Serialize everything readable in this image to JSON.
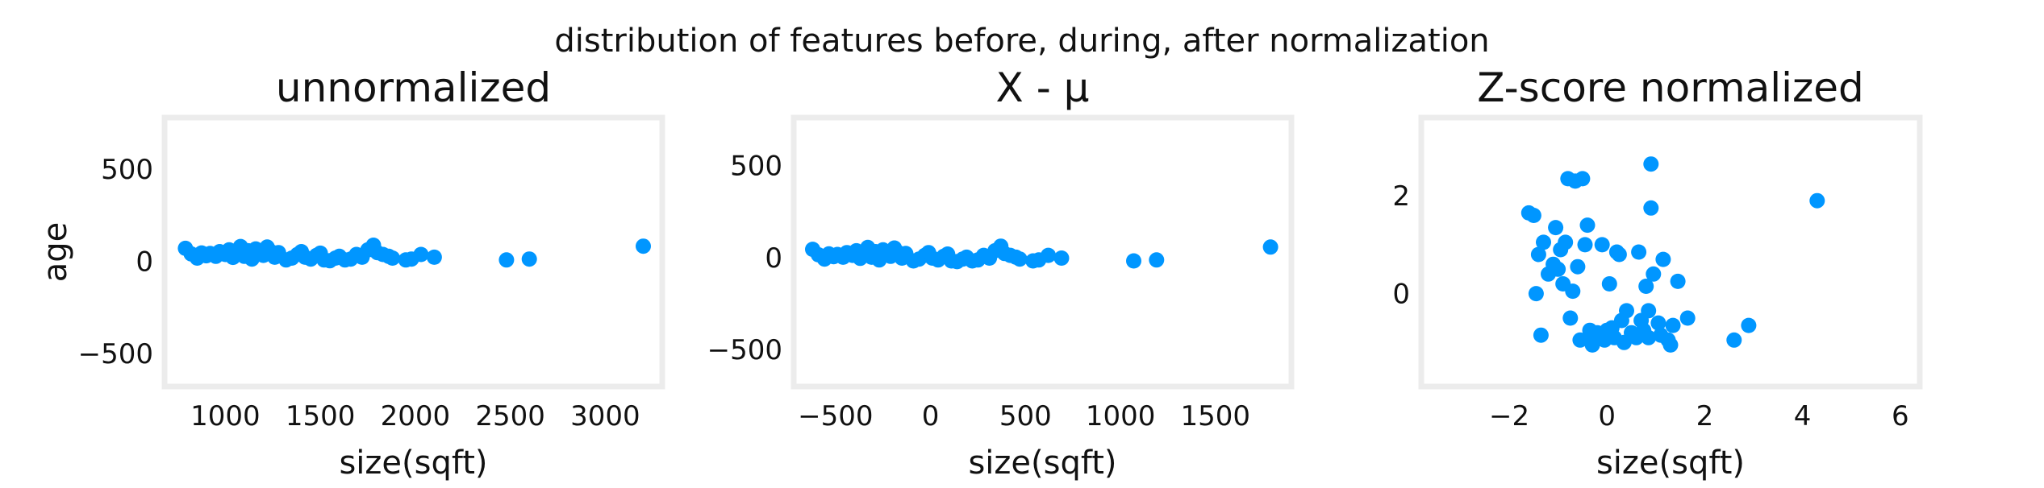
{
  "figure": {
    "suptitle": "distribution of features before, during, after normalization"
  },
  "colors": {
    "points": "#0096ff",
    "frame": "#ececec",
    "text": "#111111"
  },
  "chart_data": [
    {
      "type": "scatter",
      "title": "unnormalized",
      "xlabel": "size(sqft)",
      "ylabel": "age",
      "xlim": [
        680,
        3300
      ],
      "ylim": [
        -680,
        780
      ],
      "xticks": [
        1000,
        1500,
        2000,
        2500,
        3000
      ],
      "xtick_labels": [
        "1000",
        "1500",
        "2000",
        "2500",
        "3000"
      ],
      "yticks": [
        -500,
        0,
        500
      ],
      "ytick_labels": [
        "−500",
        "0",
        "500"
      ],
      "grid": false,
      "points": [
        [
          790,
          70
        ],
        [
          820,
          40
        ],
        [
          852,
          17
        ],
        [
          875,
          45
        ],
        [
          900,
          30
        ],
        [
          920,
          42
        ],
        [
          950,
          27
        ],
        [
          970,
          52
        ],
        [
          1000,
          37
        ],
        [
          1020,
          62
        ],
        [
          1040,
          21
        ],
        [
          1060,
          47
        ],
        [
          1080,
          80
        ],
        [
          1100,
          27
        ],
        [
          1120,
          57
        ],
        [
          1140,
          12
        ],
        [
          1160,
          67
        ],
        [
          1180,
          42
        ],
        [
          1200,
          32
        ],
        [
          1220,
          77
        ],
        [
          1240,
          52
        ],
        [
          1260,
          22
        ],
        [
          1280,
          47
        ],
        [
          1320,
          7
        ],
        [
          1350,
          17
        ],
        [
          1380,
          37
        ],
        [
          1400,
          52
        ],
        [
          1420,
          22
        ],
        [
          1450,
          12
        ],
        [
          1480,
          32
        ],
        [
          1500,
          44
        ],
        [
          1520,
          7
        ],
        [
          1550,
          3
        ],
        [
          1580,
          17
        ],
        [
          1600,
          27
        ],
        [
          1630,
          7
        ],
        [
          1660,
          12
        ],
        [
          1690,
          37
        ],
        [
          1720,
          22
        ],
        [
          1750,
          62
        ],
        [
          1780,
          87
        ],
        [
          1800,
          47
        ],
        [
          1830,
          37
        ],
        [
          1860,
          27
        ],
        [
          1880,
          17
        ],
        [
          1950,
          7
        ],
        [
          1980,
          12
        ],
        [
          2030,
          37
        ],
        [
          2100,
          22
        ],
        [
          2480,
          7
        ],
        [
          2600,
          12
        ],
        [
          3200,
          82
        ]
      ]
    },
    {
      "type": "scatter",
      "title": "X - μ",
      "xlabel": "size(sqft)",
      "ylabel": "",
      "xlim": [
        -720,
        1900
      ],
      "ylim": [
        -700,
        760
      ],
      "xticks": [
        -500,
        0,
        500,
        1000,
        1500
      ],
      "xtick_labels": [
        "−500",
        "0",
        "500",
        "1000",
        "1500"
      ],
      "yticks": [
        -500,
        0,
        500
      ],
      "ytick_labels": [
        "−500",
        "0",
        "500"
      ],
      "grid": false,
      "points": [
        [
          -620,
          45
        ],
        [
          -590,
          15
        ],
        [
          -558,
          -8
        ],
        [
          -535,
          20
        ],
        [
          -510,
          5
        ],
        [
          -490,
          17
        ],
        [
          -460,
          2
        ],
        [
          -440,
          27
        ],
        [
          -410,
          12
        ],
        [
          -390,
          37
        ],
        [
          -370,
          -4
        ],
        [
          -350,
          22
        ],
        [
          -330,
          55
        ],
        [
          -310,
          2
        ],
        [
          -290,
          32
        ],
        [
          -270,
          -13
        ],
        [
          -250,
          42
        ],
        [
          -230,
          17
        ],
        [
          -210,
          7
        ],
        [
          -190,
          52
        ],
        [
          -170,
          27
        ],
        [
          -150,
          -3
        ],
        [
          -130,
          22
        ],
        [
          -90,
          -18
        ],
        [
          -60,
          -8
        ],
        [
          -30,
          12
        ],
        [
          -10,
          27
        ],
        [
          10,
          -3
        ],
        [
          40,
          -13
        ],
        [
          70,
          7
        ],
        [
          90,
          19
        ],
        [
          110,
          -18
        ],
        [
          140,
          -22
        ],
        [
          170,
          -8
        ],
        [
          190,
          2
        ],
        [
          220,
          -18
        ],
        [
          250,
          -13
        ],
        [
          280,
          12
        ],
        [
          310,
          -3
        ],
        [
          340,
          37
        ],
        [
          370,
          62
        ],
        [
          390,
          22
        ],
        [
          420,
          12
        ],
        [
          450,
          2
        ],
        [
          470,
          -8
        ],
        [
          540,
          -18
        ],
        [
          570,
          -13
        ],
        [
          620,
          12
        ],
        [
          690,
          -3
        ],
        [
          1070,
          -18
        ],
        [
          1190,
          -13
        ],
        [
          1790,
          57
        ]
      ]
    },
    {
      "type": "scatter",
      "title": "Z-score normalized",
      "xlabel": "size(sqft)",
      "ylabel": "",
      "xlim": [
        -3.8,
        6.4
      ],
      "ylim": [
        -1.9,
        3.6
      ],
      "xticks": [
        -2,
        0,
        2,
        4,
        6
      ],
      "xtick_labels": [
        "−2",
        "0",
        "2",
        "4",
        "6"
      ],
      "yticks": [
        0,
        2
      ],
      "ytick_labels": [
        "0",
        "2"
      ],
      "grid": false,
      "points": [
        [
          -1.6,
          1.65
        ],
        [
          -1.5,
          1.6
        ],
        [
          -1.4,
          0.8
        ],
        [
          -1.45,
          0
        ],
        [
          -1.35,
          -0.85
        ],
        [
          -1.3,
          1.05
        ],
        [
          -1.2,
          0.4
        ],
        [
          -1.1,
          0.6
        ],
        [
          -1.05,
          1.35
        ],
        [
          -1,
          0.5
        ],
        [
          -0.95,
          0.9
        ],
        [
          -0.9,
          0.2
        ],
        [
          -0.85,
          1.05
        ],
        [
          -0.8,
          2.35
        ],
        [
          -0.75,
          -0.5
        ],
        [
          -0.7,
          0.05
        ],
        [
          -0.65,
          2.3
        ],
        [
          -0.6,
          0.55
        ],
        [
          -0.55,
          -0.95
        ],
        [
          -0.5,
          2.35
        ],
        [
          -0.45,
          1
        ],
        [
          -0.4,
          1.4
        ],
        [
          -0.35,
          -0.75
        ],
        [
          -0.3,
          -1.05
        ],
        [
          -0.25,
          -0.9
        ],
        [
          -0.2,
          -0.8
        ],
        [
          -0.1,
          1
        ],
        [
          -0.05,
          -0.95
        ],
        [
          0,
          -0.75
        ],
        [
          0.05,
          0.2
        ],
        [
          0.1,
          -0.7
        ],
        [
          0.15,
          -0.9
        ],
        [
          0.2,
          0.85
        ],
        [
          0.25,
          0.8
        ],
        [
          0.3,
          -0.55
        ],
        [
          0.35,
          -1
        ],
        [
          0.4,
          -0.35
        ],
        [
          0.5,
          -0.8
        ],
        [
          0.6,
          -0.9
        ],
        [
          0.65,
          0.85
        ],
        [
          0.7,
          -0.55
        ],
        [
          0.75,
          -0.75
        ],
        [
          0.8,
          0.15
        ],
        [
          0.85,
          -0.35
        ],
        [
          0.85,
          -0.9
        ],
        [
          0.9,
          1.75
        ],
        [
          0.9,
          2.65
        ],
        [
          0.95,
          0.4
        ],
        [
          1.05,
          -0.6
        ],
        [
          1.1,
          -0.85
        ],
        [
          1.15,
          0.7
        ],
        [
          1.25,
          -0.95
        ],
        [
          1.3,
          -1.05
        ],
        [
          1.35,
          -0.65
        ],
        [
          1.45,
          0.25
        ],
        [
          1.65,
          -0.5
        ],
        [
          2.6,
          -0.95
        ],
        [
          2.9,
          -0.65
        ],
        [
          4.3,
          1.9
        ]
      ]
    }
  ]
}
